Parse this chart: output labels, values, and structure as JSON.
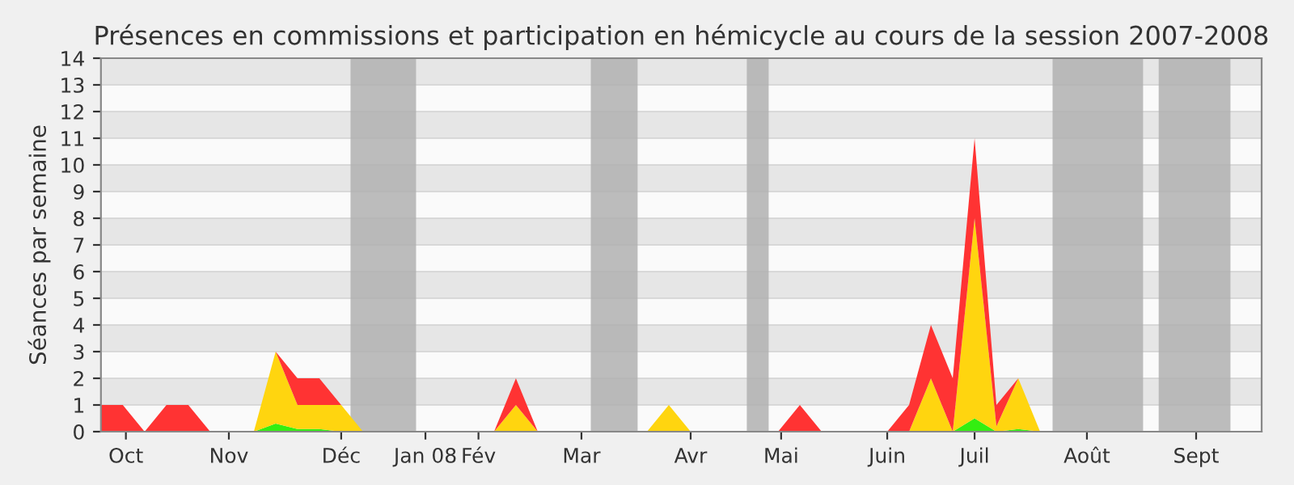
{
  "chart_data": {
    "type": "area",
    "stacked": true,
    "title": "Présences en commissions et participation en hémicycle au cours de la session 2007-2008",
    "ylabel": "Séances par semaine",
    "x": [
      "2007-10-01",
      "2007-10-08",
      "2007-10-15",
      "2007-10-22",
      "2007-10-29",
      "2007-11-05",
      "2007-11-12",
      "2007-11-19",
      "2007-11-26",
      "2007-12-03",
      "2007-12-10",
      "2007-12-17",
      "2007-12-24",
      "2007-12-31",
      "2008-01-07",
      "2008-01-14",
      "2008-01-21",
      "2008-01-28",
      "2008-02-04",
      "2008-02-11",
      "2008-02-18",
      "2008-02-25",
      "2008-03-03",
      "2008-03-10",
      "2008-03-17",
      "2008-03-24",
      "2008-03-31",
      "2008-04-07",
      "2008-04-14",
      "2008-04-21",
      "2008-04-28",
      "2008-05-05",
      "2008-05-12",
      "2008-05-19",
      "2008-05-26",
      "2008-06-02",
      "2008-06-09",
      "2008-06-16",
      "2008-06-23",
      "2008-06-30",
      "2008-07-07",
      "2008-07-14",
      "2008-07-21",
      "2008-07-28",
      "2008-08-04",
      "2008-08-11",
      "2008-08-18",
      "2008-08-25",
      "2008-09-01",
      "2008-09-08",
      "2008-09-15",
      "2008-09-22",
      "2008-09-29",
      "2008-10-06"
    ],
    "series": [
      {
        "color": "#33ee11",
        "values": [
          0,
          0,
          0,
          0,
          0,
          0,
          0,
          0,
          0.3,
          0.1,
          0.1,
          0,
          0,
          0,
          0,
          0,
          0,
          0,
          0,
          0,
          0,
          0,
          0,
          0,
          0,
          0,
          0,
          0,
          0,
          0,
          0,
          0,
          0,
          0,
          0,
          0,
          0,
          0,
          0,
          0,
          0.5,
          0,
          0.1,
          0,
          0,
          0,
          0,
          0,
          0,
          0,
          0,
          0,
          0,
          0
        ]
      },
      {
        "color": "#ffd50f",
        "values": [
          0,
          0,
          0,
          0,
          0,
          0,
          0,
          0,
          2.7,
          0.9,
          0.9,
          1,
          0,
          0,
          0,
          0,
          0,
          0,
          0,
          1,
          0,
          0,
          0,
          0,
          0,
          0,
          1,
          0,
          0,
          0,
          0,
          0,
          0,
          0,
          0,
          0,
          0,
          0,
          2,
          0,
          7.5,
          0.2,
          1.9,
          0,
          0,
          0,
          0,
          0,
          0,
          0,
          0,
          0,
          0,
          0
        ]
      },
      {
        "color": "#ff3333",
        "values": [
          1,
          1,
          0,
          1,
          1,
          0,
          0,
          0,
          0,
          1,
          1,
          0,
          0,
          0,
          0,
          0,
          0,
          0,
          0,
          1,
          0,
          0,
          0,
          0,
          0,
          0,
          0,
          0,
          0,
          0,
          0,
          0,
          1,
          0,
          0,
          0,
          0,
          1,
          2,
          2,
          3,
          0.8,
          0,
          0,
          0,
          0,
          0,
          0,
          0,
          0,
          0,
          0,
          0,
          0
        ]
      }
    ],
    "bands": [
      {
        "axis": "x",
        "from": "2007-12-20",
        "to": "2008-01-10",
        "color": "#b0b0b0"
      },
      {
        "axis": "x",
        "from": "2008-03-06",
        "to": "2008-03-21",
        "color": "#b0b0b0"
      },
      {
        "axis": "x",
        "from": "2008-04-25",
        "to": "2008-05-02",
        "color": "#b0b0b0"
      },
      {
        "axis": "x",
        "from": "2008-08-01",
        "to": "2008-08-30",
        "color": "#b0b0b0"
      },
      {
        "axis": "x",
        "from": "2008-09-04",
        "to": "2008-09-27",
        "color": "#b0b0b0"
      }
    ],
    "xlim": [
      "2007-10-01",
      "2008-10-07"
    ],
    "xticks": [
      {
        "value": "2007-10-09",
        "label": "Oct"
      },
      {
        "value": "2007-11-11",
        "label": "Nov"
      },
      {
        "value": "2007-12-17",
        "label": "Déc"
      },
      {
        "value": "2008-01-13",
        "label": "Jan 08"
      },
      {
        "value": "2008-01-30",
        "label": "Fév"
      },
      {
        "value": "2008-03-03",
        "label": "Mar"
      },
      {
        "value": "2008-04-07",
        "label": "Avr"
      },
      {
        "value": "2008-05-06",
        "label": "Mai"
      },
      {
        "value": "2008-06-09",
        "label": "Juin"
      },
      {
        "value": "2008-07-07",
        "label": "Juil"
      },
      {
        "value": "2008-08-12",
        "label": "Août"
      },
      {
        "value": "2008-09-16",
        "label": "Sept"
      }
    ],
    "ylim": [
      0,
      14
    ],
    "yticks": [
      0,
      1,
      2,
      3,
      4,
      5,
      6,
      7,
      8,
      9,
      10,
      11,
      12,
      13,
      14
    ],
    "grid": "y"
  }
}
